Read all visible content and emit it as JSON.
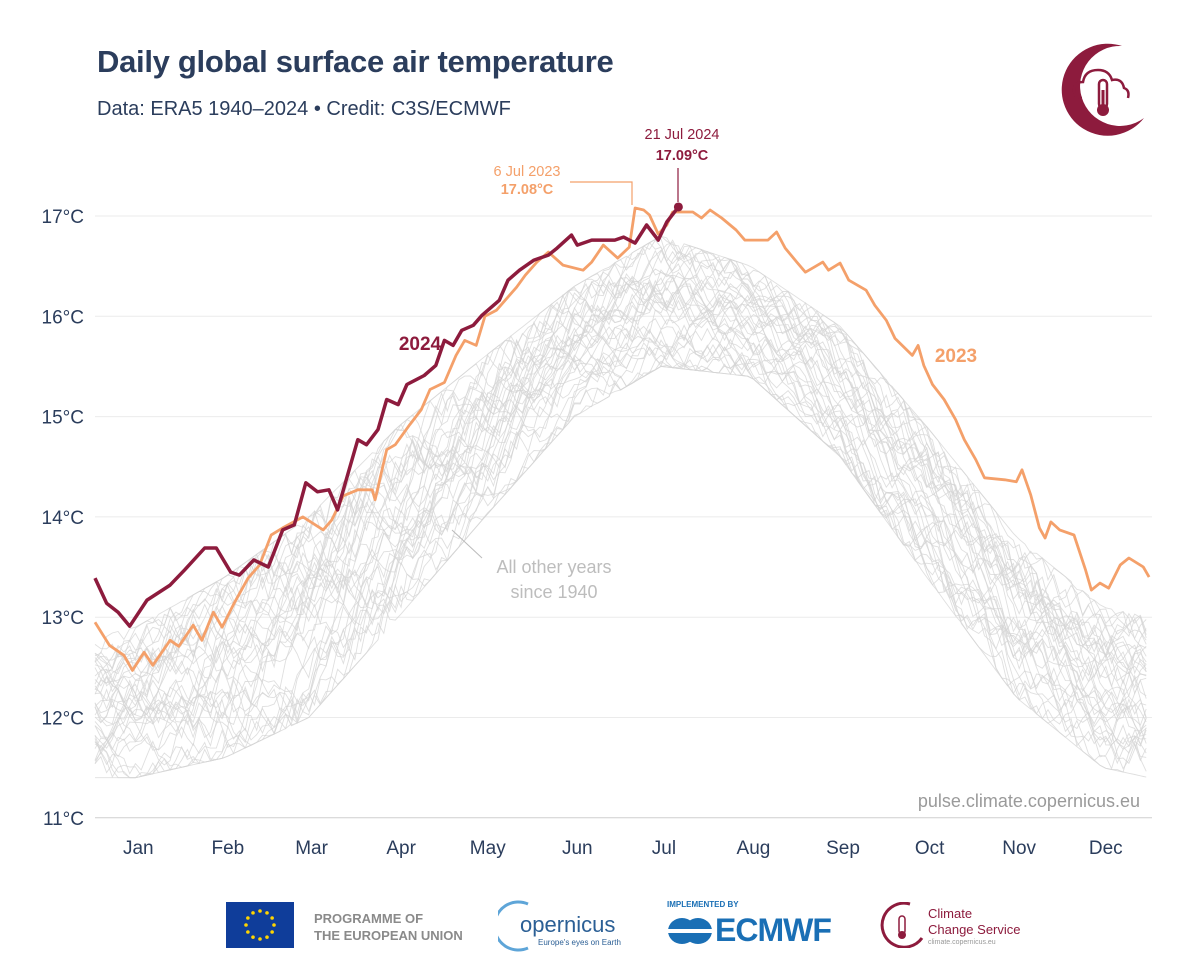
{
  "header": {
    "title": "Daily global surface air temperature",
    "subtitle": "Data: ERA5 1940–2024 • Credit: C3S/ECMWF",
    "logo": "climate-change-service-logo"
  },
  "chart_data": {
    "type": "line",
    "title": "Daily global surface air temperature",
    "xlabel": "",
    "ylabel": "",
    "ylim": [
      11,
      17.3
    ],
    "y_ticks": [
      "11°C",
      "12°C",
      "13°C",
      "14°C",
      "15°C",
      "16°C",
      "17°C"
    ],
    "y_tick_values": [
      11,
      12,
      13,
      14,
      15,
      16,
      17
    ],
    "x_ticks": [
      "Jan",
      "Feb",
      "Mar",
      "Apr",
      "May",
      "Jun",
      "Jul",
      "Aug",
      "Sep",
      "Oct",
      "Nov",
      "Dec"
    ],
    "grid": true,
    "colors": {
      "2024": "#8d1b3d",
      "2023": "#f4a06a",
      "other": "#d4d4d4"
    },
    "series": [
      {
        "name": "2024",
        "x": [
          "01-01",
          "01-05",
          "01-09",
          "01-13",
          "01-19",
          "01-27",
          "02-01",
          "02-08",
          "02-12",
          "02-17",
          "02-20",
          "02-25",
          "03-01",
          "03-06",
          "03-10",
          "03-14",
          "03-18",
          "03-22",
          "03-25",
          "03-29",
          "04-01",
          "04-04",
          "04-08",
          "04-11",
          "04-15",
          "04-18",
          "04-24",
          "04-28",
          "05-01",
          "05-04",
          "05-07",
          "05-11",
          "05-14",
          "05-20",
          "05-23",
          "05-27",
          "06-01",
          "06-06",
          "06-09",
          "06-14",
          "06-16",
          "06-21",
          "06-29",
          "07-02",
          "07-06",
          "07-10",
          "07-14",
          "07-17",
          "07-21"
        ],
        "y": [
          13.39,
          13.14,
          13.05,
          12.91,
          13.17,
          13.32,
          13.47,
          13.69,
          13.69,
          13.45,
          13.42,
          13.57,
          13.5,
          13.87,
          13.92,
          14.34,
          14.25,
          14.27,
          14.07,
          14.47,
          14.77,
          14.72,
          14.87,
          15.17,
          15.12,
          15.32,
          15.41,
          15.51,
          15.76,
          15.71,
          15.86,
          15.91,
          16.01,
          16.16,
          16.36,
          16.46,
          16.56,
          16.61,
          16.68,
          16.81,
          16.71,
          16.76,
          16.76,
          16.79,
          16.73,
          16.91,
          16.76,
          16.94,
          17.09
        ]
      },
      {
        "name": "2023",
        "x": [
          "01-01",
          "01-06",
          "01-11",
          "01-14",
          "01-18",
          "01-21",
          "01-27",
          "01-30",
          "02-04",
          "02-07",
          "02-11",
          "02-14",
          "02-18",
          "02-23",
          "02-27",
          "03-02",
          "03-06",
          "03-13",
          "03-20",
          "03-23",
          "03-27",
          "04-01",
          "04-06",
          "04-07",
          "04-11",
          "04-14",
          "04-19",
          "04-23",
          "04-26",
          "05-01",
          "05-05",
          "05-08",
          "05-12",
          "05-15",
          "05-19",
          "05-22",
          "05-26",
          "05-29",
          "06-02",
          "06-06",
          "06-11",
          "06-18",
          "06-21",
          "06-25",
          "06-30",
          "07-04",
          "07-06",
          "07-09",
          "07-11",
          "07-14",
          "07-17",
          "07-19",
          "07-26",
          "07-29",
          "08-01",
          "08-05",
          "08-10",
          "08-13",
          "08-21",
          "08-24",
          "08-27",
          "08-31",
          "09-03",
          "09-06",
          "09-09",
          "09-11",
          "09-15",
          "09-18",
          "09-24",
          "09-27",
          "10-01",
          "10-04",
          "10-10",
          "10-12",
          "10-14",
          "10-17",
          "10-21",
          "10-25",
          "10-28",
          "11-01",
          "11-04",
          "11-11",
          "11-15",
          "11-17",
          "11-20",
          "11-23",
          "11-25",
          "11-27",
          "11-30",
          "12-05",
          "12-09",
          "12-11",
          "12-14",
          "12-17",
          "12-21",
          "12-24",
          "12-29",
          "12-31"
        ],
        "y": [
          12.95,
          12.72,
          12.62,
          12.47,
          12.65,
          12.52,
          12.77,
          12.71,
          12.92,
          12.77,
          13.05,
          12.9,
          13.13,
          13.39,
          13.52,
          13.82,
          13.89,
          14.0,
          13.87,
          13.97,
          14.21,
          14.27,
          14.27,
          14.17,
          14.67,
          14.72,
          14.92,
          15.07,
          15.27,
          15.34,
          15.61,
          15.76,
          15.71,
          16.0,
          16.06,
          16.16,
          16.29,
          16.41,
          16.54,
          16.64,
          16.51,
          16.46,
          16.54,
          16.71,
          16.58,
          16.69,
          17.08,
          17.06,
          17.01,
          16.82,
          16.91,
          17.04,
          17.04,
          16.98,
          17.06,
          16.98,
          16.86,
          16.76,
          16.76,
          16.84,
          16.68,
          16.54,
          16.44,
          16.49,
          16.54,
          16.46,
          16.53,
          16.36,
          16.26,
          16.11,
          15.96,
          15.78,
          15.61,
          15.71,
          15.51,
          15.32,
          15.17,
          14.97,
          14.77,
          14.57,
          14.39,
          14.37,
          14.35,
          14.47,
          14.22,
          13.89,
          13.79,
          13.95,
          13.87,
          13.82,
          13.47,
          13.27,
          13.34,
          13.29,
          13.52,
          13.59,
          13.5,
          13.4
        ]
      }
    ],
    "other_years_range": {
      "label": "All other years since 1940",
      "x": [
        "01-01",
        "01-15",
        "02-15",
        "03-15",
        "04-15",
        "05-15",
        "06-15",
        "07-15",
        "08-15",
        "09-15",
        "10-15",
        "11-15",
        "12-15",
        "12-31"
      ],
      "low": [
        11.4,
        11.4,
        11.6,
        12.0,
        13.0,
        14.0,
        15.0,
        15.5,
        15.4,
        14.6,
        13.4,
        12.2,
        11.5,
        11.4
      ],
      "high": [
        12.8,
        12.9,
        13.4,
        14.0,
        14.9,
        15.6,
        16.3,
        16.8,
        16.5,
        15.9,
        14.9,
        13.8,
        13.1,
        13.0
      ]
    },
    "annotations": {
      "label_2024": "2024",
      "label_2023": "2023",
      "other_years_line1": "All other years",
      "other_years_line2": "since 1940",
      "peak_2023_date": "6 Jul 2023",
      "peak_2023_value": "17.08°C",
      "peak_2024_date": "21 Jul 2024",
      "peak_2024_value": "17.09°C",
      "source_url": "pulse.climate.copernicus.eu"
    }
  },
  "footer": {
    "eu_line1": "PROGRAMME OF",
    "eu_line2": "THE EUROPEAN UNION",
    "copernicus_name": "opernicus",
    "copernicus_tagline": "Europe's eyes on Earth",
    "implemented_by": "IMPLEMENTED BY",
    "ecmwf": "ECMWF",
    "c3s_line1": "Climate",
    "c3s_line2": "Change Service",
    "c3s_url": "climate.copernicus.eu"
  }
}
